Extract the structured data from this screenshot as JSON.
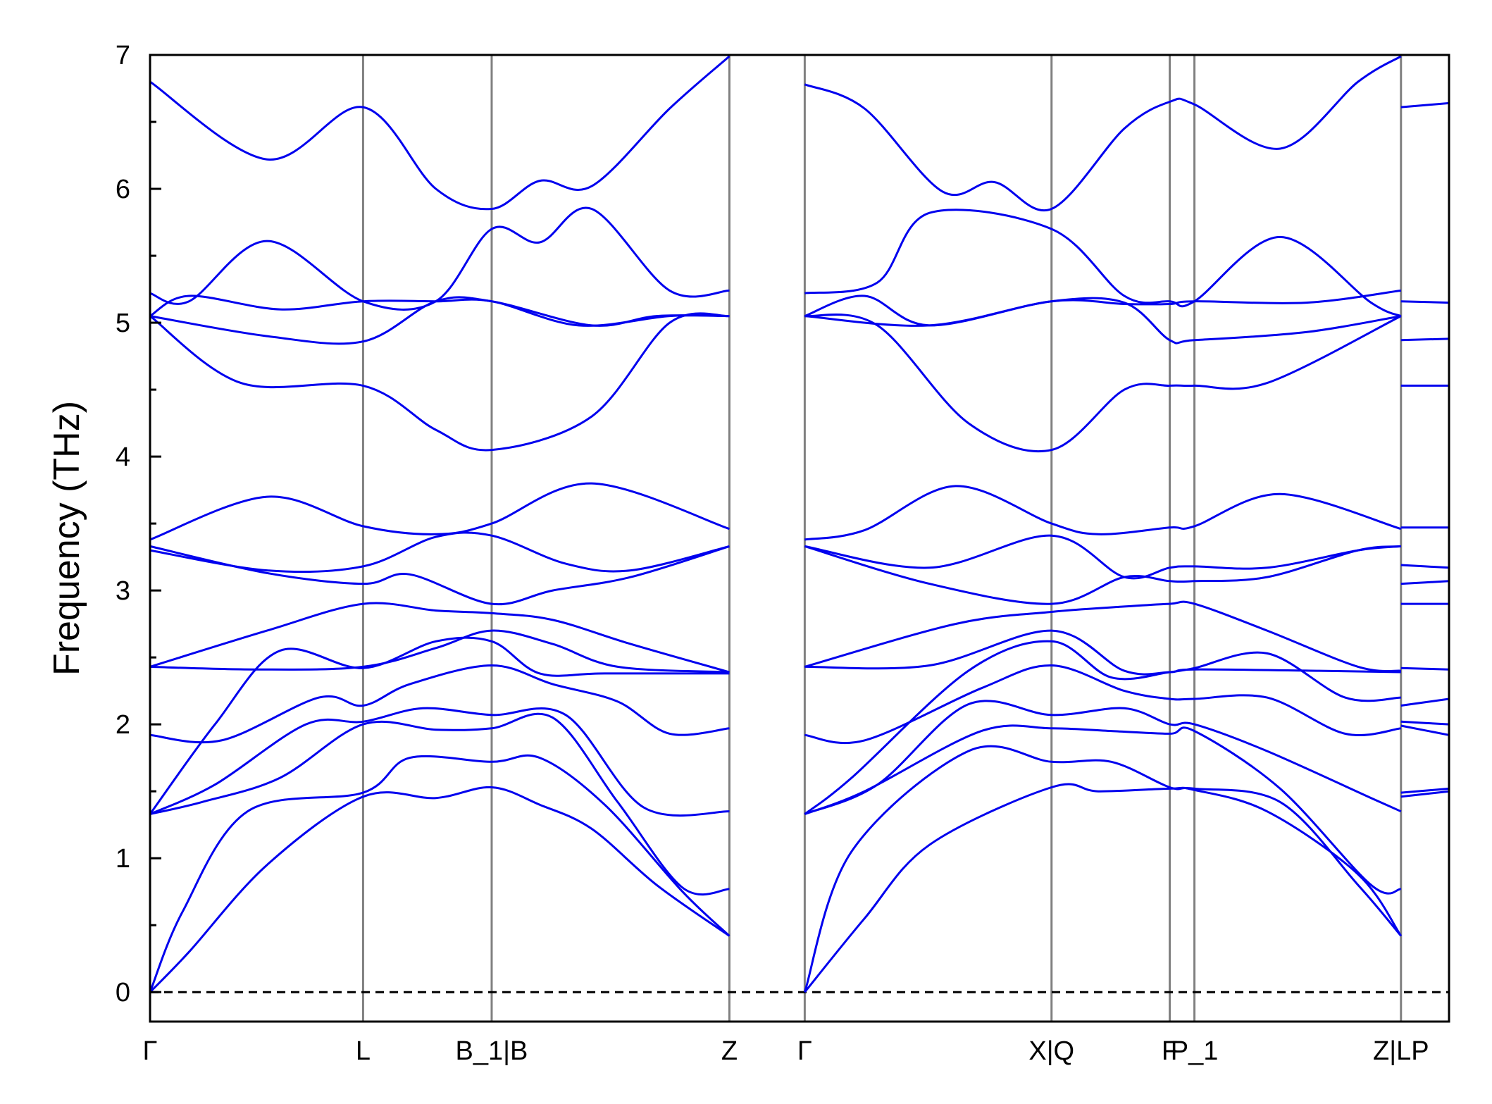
{
  "chart_data": {
    "type": "line",
    "title": "",
    "xlabel": "",
    "ylabel": "Frequency (THz)",
    "ylim": [
      -0.22,
      7.0
    ],
    "y_ticks": [
      0,
      1,
      2,
      3,
      4,
      5,
      6,
      7
    ],
    "y_minor_step": 0.5,
    "x_ticks": [
      {
        "label": "Γ",
        "x": 0.0
      },
      {
        "label": "L",
        "x": 1.64
      },
      {
        "label": "B_1|B",
        "x": 2.63
      },
      {
        "label": "Z",
        "x": 4.46
      },
      {
        "label": "Γ",
        "x": 5.04
      },
      {
        "label": "X|Q",
        "x": 6.94
      },
      {
        "label": "F",
        "x": 7.85
      },
      {
        "label": "P_1",
        "x": 8.04
      },
      {
        "label": "Z|LP",
        "x": 9.63
      }
    ],
    "xlim": [
      0.0,
      10.0
    ],
    "band_color": "#0000ee",
    "vline_color": "#808080",
    "zero_line": {
      "y": 0,
      "style": "dashed",
      "color": "#000000"
    },
    "series": [
      {
        "x": [
          0.0,
          0.3,
          0.9,
          1.64,
          2.2,
          2.63,
          3.0,
          3.4,
          3.9,
          4.46
        ],
        "values": [
          0.0,
          0.3,
          0.95,
          1.46,
          1.45,
          1.53,
          1.4,
          1.22,
          0.8,
          0.42
        ]
      },
      {
        "x": [
          5.04,
          5.5,
          6.0,
          6.94,
          7.3,
          7.85,
          8.04,
          8.6,
          9.3,
          9.63
        ],
        "values": [
          0.0,
          0.55,
          1.1,
          1.53,
          1.5,
          1.52,
          1.51,
          1.35,
          0.88,
          0.42
        ]
      },
      {
        "x": [
          0.0,
          0.25,
          0.75,
          1.64,
          2.0,
          2.63,
          3.0,
          3.5,
          4.1,
          4.46
        ],
        "values": [
          0.0,
          0.6,
          1.35,
          1.49,
          1.75,
          1.72,
          1.75,
          1.4,
          0.75,
          0.42
        ]
      },
      {
        "x": [
          5.04,
          5.4,
          6.3,
          6.94,
          7.4,
          7.85,
          8.04,
          8.7,
          9.3,
          9.63
        ],
        "values": [
          0.0,
          1.05,
          1.8,
          1.72,
          1.72,
          1.53,
          1.52,
          1.42,
          0.8,
          0.42
        ]
      },
      {
        "x": [
          0.0,
          0.4,
          1.0,
          1.64,
          2.2,
          2.63,
          3.1,
          3.6,
          4.1,
          4.46
        ],
        "values": [
          1.33,
          1.42,
          1.6,
          2.0,
          1.96,
          1.97,
          2.05,
          1.42,
          0.78,
          0.77
        ]
      },
      {
        "x": [
          5.04,
          5.5,
          6.4,
          6.94,
          7.4,
          7.85,
          8.04,
          8.7,
          9.4,
          9.63
        ],
        "values": [
          1.33,
          1.5,
          1.95,
          1.97,
          1.95,
          1.93,
          1.95,
          1.52,
          0.8,
          0.77
        ]
      },
      {
        "x": [
          0.0,
          0.5,
          1.2,
          1.64,
          2.1,
          2.63,
          3.2,
          3.8,
          4.46
        ],
        "values": [
          1.33,
          1.55,
          2.0,
          2.02,
          2.12,
          2.07,
          2.07,
          1.38,
          1.35
        ]
      },
      {
        "x": [
          5.04,
          5.6,
          6.3,
          6.94,
          7.5,
          7.85,
          8.04,
          8.6,
          9.4,
          9.63
        ],
        "values": [
          1.33,
          1.55,
          2.15,
          2.07,
          2.12,
          2.0,
          2.0,
          1.8,
          1.45,
          1.35
        ]
      },
      {
        "x": [
          0.0,
          0.55,
          1.3,
          1.64,
          2.0,
          2.63,
          3.1,
          3.6,
          4.0,
          4.46
        ],
        "values": [
          1.92,
          1.88,
          2.2,
          2.14,
          2.3,
          2.44,
          2.3,
          2.17,
          1.93,
          1.97
        ]
      },
      {
        "x": [
          5.04,
          5.5,
          6.4,
          6.94,
          7.5,
          7.85,
          8.04,
          8.6,
          9.2,
          9.63
        ],
        "values": [
          1.92,
          1.88,
          2.27,
          2.44,
          2.25,
          2.19,
          2.19,
          2.2,
          1.93,
          1.97
        ]
      },
      {
        "x": [
          0.0,
          0.5,
          1.0,
          1.64,
          2.2,
          2.63,
          3.0,
          3.5,
          4.46
        ],
        "values": [
          1.33,
          2.0,
          2.55,
          2.42,
          2.62,
          2.62,
          2.38,
          2.38,
          2.38
        ]
      },
      {
        "x": [
          5.04,
          5.4,
          6.3,
          6.94,
          7.4,
          7.85,
          8.04,
          8.6,
          9.2,
          9.63
        ],
        "values": [
          1.33,
          1.6,
          2.4,
          2.62,
          2.35,
          2.39,
          2.42,
          2.53,
          2.2,
          2.2
        ]
      },
      {
        "x": [
          0.0,
          0.8,
          1.64,
          2.2,
          2.63,
          3.1,
          3.6,
          4.46
        ],
        "values": [
          2.43,
          2.41,
          2.43,
          2.57,
          2.7,
          2.6,
          2.43,
          2.39
        ]
      },
      {
        "x": [
          5.04,
          6.0,
          6.94,
          7.5,
          7.85,
          8.04,
          9.0,
          9.63
        ],
        "values": [
          2.43,
          2.44,
          2.7,
          2.4,
          2.39,
          2.41,
          2.4,
          2.39
        ]
      },
      {
        "x": [
          0.0,
          0.9,
          1.64,
          2.2,
          2.63,
          3.1,
          3.7,
          4.46
        ],
        "values": [
          2.43,
          2.7,
          2.9,
          2.85,
          2.83,
          2.78,
          2.6,
          2.39
        ]
      },
      {
        "x": [
          5.04,
          6.2,
          6.94,
          7.5,
          7.85,
          8.04,
          8.6,
          9.3,
          9.63
        ],
        "values": [
          2.43,
          2.75,
          2.84,
          2.88,
          2.9,
          2.9,
          2.7,
          2.43,
          2.4
        ]
      },
      {
        "x": [
          0.0,
          0.9,
          1.64,
          2.0,
          2.63,
          3.1,
          3.7,
          4.46
        ],
        "values": [
          3.33,
          3.13,
          3.05,
          3.12,
          2.9,
          3.0,
          3.1,
          3.33
        ]
      },
      {
        "x": [
          5.04,
          6.0,
          6.94,
          7.5,
          7.85,
          8.04,
          8.6,
          9.3,
          9.63
        ],
        "values": [
          3.33,
          3.05,
          2.9,
          3.1,
          3.07,
          3.07,
          3.1,
          3.3,
          3.33
        ]
      },
      {
        "x": [
          0.0,
          0.9,
          1.64,
          2.2,
          2.63,
          3.2,
          3.7,
          4.46
        ],
        "values": [
          3.3,
          3.15,
          3.18,
          3.4,
          3.41,
          3.2,
          3.15,
          3.33
        ]
      },
      {
        "x": [
          5.04,
          6.0,
          6.94,
          7.5,
          7.85,
          8.04,
          8.6,
          9.3,
          9.63
        ],
        "values": [
          3.33,
          3.17,
          3.41,
          3.1,
          3.17,
          3.18,
          3.17,
          3.3,
          3.33
        ]
      },
      {
        "x": [
          0.0,
          0.9,
          1.64,
          2.2,
          2.63,
          3.4,
          4.46
        ],
        "values": [
          3.38,
          3.7,
          3.48,
          3.42,
          3.5,
          3.8,
          3.46
        ]
      },
      {
        "x": [
          5.04,
          5.5,
          6.2,
          6.94,
          7.3,
          7.85,
          8.04,
          8.7,
          9.63
        ],
        "values": [
          3.38,
          3.45,
          3.78,
          3.5,
          3.42,
          3.47,
          3.48,
          3.72,
          3.46
        ]
      },
      {
        "x": [
          0.0,
          0.7,
          1.64,
          2.2,
          2.63,
          3.4,
          4.0,
          4.46
        ],
        "values": [
          5.05,
          4.55,
          4.53,
          4.2,
          4.05,
          4.3,
          5.0,
          5.05
        ]
      },
      {
        "x": [
          5.04,
          5.6,
          6.3,
          6.94,
          7.5,
          7.85,
          8.04,
          8.6,
          9.63
        ],
        "values": [
          5.05,
          4.98,
          4.25,
          4.05,
          4.5,
          4.53,
          4.53,
          4.55,
          5.05
        ]
      },
      {
        "x": [
          0.0,
          0.9,
          1.64,
          2.2,
          2.63,
          3.4,
          3.9,
          4.46
        ],
        "values": [
          5.05,
          4.9,
          4.86,
          5.16,
          5.16,
          4.98,
          5.05,
          5.05
        ]
      },
      {
        "x": [
          5.04,
          6.0,
          6.94,
          7.5,
          7.85,
          8.04,
          8.9,
          9.63
        ],
        "values": [
          5.05,
          4.98,
          5.16,
          5.15,
          4.87,
          4.87,
          4.93,
          5.05
        ]
      },
      {
        "x": [
          0.0,
          0.3,
          1.0,
          1.64,
          2.2,
          2.63,
          3.3,
          4.0,
          4.46
        ],
        "values": [
          5.05,
          5.2,
          5.1,
          5.16,
          5.16,
          5.16,
          4.98,
          5.05,
          5.05
        ]
      },
      {
        "x": [
          5.04,
          5.5,
          6.0,
          6.94,
          7.5,
          7.85,
          8.04,
          8.9,
          9.63
        ],
        "values": [
          5.05,
          5.2,
          4.98,
          5.16,
          5.14,
          5.14,
          5.16,
          5.15,
          5.24
        ]
      },
      {
        "x": [
          0.0,
          0.3,
          0.9,
          1.64,
          2.2,
          2.63,
          3.0,
          3.4,
          4.0,
          4.46
        ],
        "values": [
          5.22,
          5.16,
          5.61,
          5.16,
          5.16,
          5.7,
          5.6,
          5.85,
          5.24,
          5.24
        ]
      },
      {
        "x": [
          5.04,
          5.6,
          6.0,
          6.94,
          7.5,
          7.85,
          8.04,
          8.7,
          9.4,
          9.63
        ],
        "values": [
          5.22,
          5.3,
          5.82,
          5.7,
          5.2,
          5.16,
          5.16,
          5.64,
          5.15,
          5.05
        ]
      },
      {
        "x": [
          0.0,
          0.9,
          1.64,
          2.2,
          2.63,
          3.0,
          3.4,
          4.0,
          4.46
        ],
        "values": [
          6.8,
          6.22,
          6.61,
          6.0,
          5.85,
          6.06,
          6.02,
          6.6,
          6.99
        ]
      },
      {
        "x": [
          5.04,
          5.5,
          6.1,
          6.5,
          6.94,
          7.5,
          7.85,
          8.04,
          8.7,
          9.3,
          9.63
        ],
        "values": [
          6.78,
          6.6,
          5.98,
          6.05,
          5.85,
          6.45,
          6.65,
          6.63,
          6.3,
          6.8,
          6.99
        ]
      },
      {
        "x": [
          9.63,
          10.0
        ],
        "values": [
          6.61,
          6.64
        ]
      },
      {
        "x": [
          9.63,
          10.0
        ],
        "values": [
          5.16,
          5.15
        ]
      },
      {
        "x": [
          9.63,
          10.0
        ],
        "values": [
          4.87,
          4.88
        ]
      },
      {
        "x": [
          9.63,
          10.0
        ],
        "values": [
          4.53,
          4.53
        ]
      },
      {
        "x": [
          9.63,
          10.0
        ],
        "values": [
          3.47,
          3.47
        ]
      },
      {
        "x": [
          9.63,
          10.0
        ],
        "values": [
          3.19,
          3.17
        ]
      },
      {
        "x": [
          9.63,
          10.0
        ],
        "values": [
          3.05,
          3.07
        ]
      },
      {
        "x": [
          9.63,
          10.0
        ],
        "values": [
          2.9,
          2.9
        ]
      },
      {
        "x": [
          9.63,
          10.0
        ],
        "values": [
          2.42,
          2.41
        ]
      },
      {
        "x": [
          9.63,
          10.0
        ],
        "values": [
          2.14,
          2.19
        ]
      },
      {
        "x": [
          9.63,
          10.0
        ],
        "values": [
          2.02,
          2.0
        ]
      },
      {
        "x": [
          9.63,
          10.0
        ],
        "values": [
          1.99,
          1.92
        ]
      },
      {
        "x": [
          9.63,
          10.0
        ],
        "values": [
          1.49,
          1.52
        ]
      },
      {
        "x": [
          9.63,
          10.0
        ],
        "values": [
          1.46,
          1.5
        ]
      }
    ]
  }
}
